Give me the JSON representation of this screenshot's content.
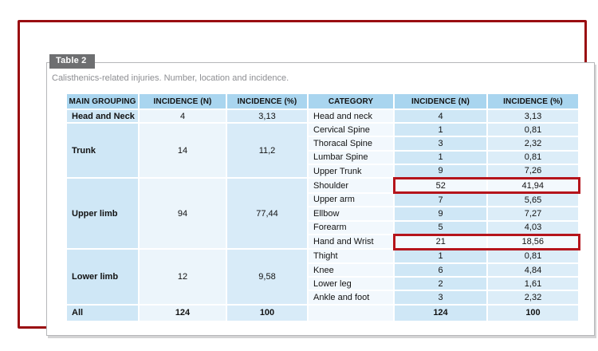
{
  "card": {
    "tab_label": "Table 2",
    "caption": "Calisthenics-related injuries. Number, location and incidence."
  },
  "table": {
    "headers": [
      "MAIN GROUPING",
      "INCIDENCE (N)",
      "INCIDENCE (%)",
      "CATEGORY",
      "INCIDENCE (N)",
      "INCIDENCE (%)"
    ],
    "groups": [
      {
        "name": "Head and Neck",
        "n": "4",
        "pct": "3,13",
        "rows": [
          {
            "category": "Head and neck",
            "n": "4",
            "pct": "3,13",
            "highlight": false
          }
        ]
      },
      {
        "name": "Trunk",
        "n": "14",
        "pct": "11,2",
        "rows": [
          {
            "category": "Cervical Spine",
            "n": "1",
            "pct": "0,81",
            "highlight": false
          },
          {
            "category": "Thoracal Spine",
            "n": "3",
            "pct": "2,32",
            "highlight": false
          },
          {
            "category": "Lumbar Spine",
            "n": "1",
            "pct": "0,81",
            "highlight": false
          },
          {
            "category": "Upper Trunk",
            "n": "9",
            "pct": "7,26",
            "highlight": false
          }
        ]
      },
      {
        "name": "Upper limb",
        "n": "94",
        "pct": "77,44",
        "rows": [
          {
            "category": "Shoulder",
            "n": "52",
            "pct": "41,94",
            "highlight": true
          },
          {
            "category": "Upper arm",
            "n": "7",
            "pct": "5,65",
            "highlight": false
          },
          {
            "category": "Ellbow",
            "n": "9",
            "pct": "7,27",
            "highlight": false
          },
          {
            "category": "Forearm",
            "n": "5",
            "pct": "4,03",
            "highlight": false
          },
          {
            "category": "Hand and Wrist",
            "n": "21",
            "pct": "18,56",
            "highlight": true
          }
        ]
      },
      {
        "name": "Lower limb",
        "n": "12",
        "pct": "9,58",
        "rows": [
          {
            "category": "Thight",
            "n": "1",
            "pct": "0,81",
            "highlight": false
          },
          {
            "category": "Knee",
            "n": "6",
            "pct": "4,84",
            "highlight": false
          },
          {
            "category": "Lower leg",
            "n": "2",
            "pct": "1,61",
            "highlight": false
          },
          {
            "category": "Ankle and foot",
            "n": "3",
            "pct": "2,32",
            "highlight": false
          }
        ]
      }
    ],
    "total": {
      "name": "All",
      "n": "124",
      "pct": "100",
      "category": "",
      "cat_n": "124",
      "cat_pct": "100"
    }
  },
  "colors": {
    "annotation_frame_red": "#9a0d11",
    "highlight_box_red": "#b5141b",
    "header_blue": "#a9d5ef",
    "cell_blue": "#cfe7f6",
    "cell_pale_blue": "#ecf5fb",
    "tab_gray": "#6e6f71"
  }
}
